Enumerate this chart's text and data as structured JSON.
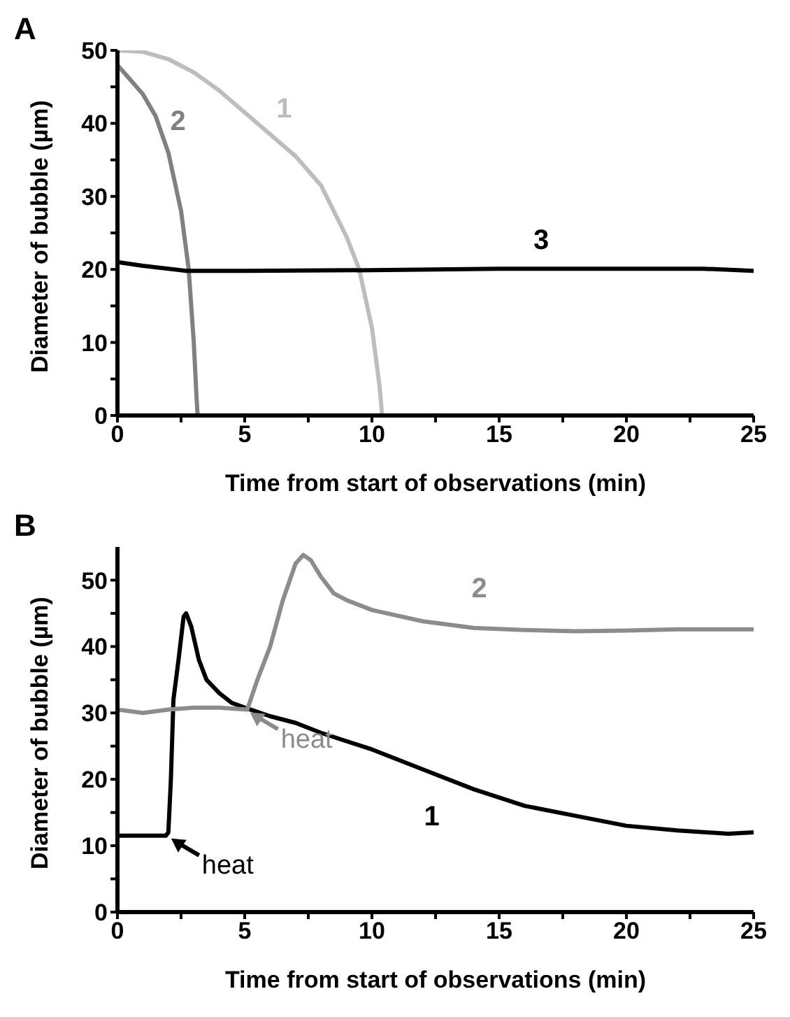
{
  "chart_data": [
    {
      "type": "line",
      "title": "A",
      "xlabel": "Time from start of observations (min)",
      "ylabel": "Diameter of bubble (µm)",
      "xlim": [
        0,
        25
      ],
      "ylim": [
        0,
        50
      ],
      "xticks": [
        0,
        {
          "value": 2.5,
          "label": null
        },
        5,
        {
          "value": 7.5,
          "label": null
        },
        10,
        {
          "value": 12.5,
          "label": null
        },
        15,
        {
          "value": 17.5,
          "label": null
        },
        20,
        {
          "value": 22.5,
          "label": null
        },
        25
      ],
      "yticks": [
        0,
        {
          "value": 5,
          "label": null
        },
        10,
        {
          "value": 15,
          "label": null
        },
        20,
        {
          "value": 25,
          "label": null
        },
        30,
        {
          "value": 35,
          "label": null
        },
        40,
        {
          "value": 45,
          "label": null
        },
        50
      ],
      "grid": false,
      "legend": false,
      "marker": "none",
      "line_style": "solid",
      "series": [
        {
          "name": "1",
          "color": "#bdbdbd",
          "x": [
            0,
            1,
            2,
            3,
            4,
            5,
            6,
            7,
            8,
            9,
            9.5,
            10,
            10.3,
            10.4
          ],
          "values": [
            50,
            49.8,
            48.8,
            47,
            44.5,
            41.5,
            38.5,
            35.5,
            31.5,
            24.5,
            20,
            12,
            4,
            0
          ]
        },
        {
          "name": "2",
          "color": "#808080",
          "x": [
            0,
            0.5,
            1,
            1.5,
            2,
            2.5,
            2.8,
            3,
            3.1,
            3.15
          ],
          "values": [
            48,
            46,
            44,
            41,
            36,
            28,
            20,
            10,
            3,
            0
          ]
        },
        {
          "name": "3",
          "color": "#000000",
          "x": [
            0,
            1,
            2.7,
            5,
            10,
            15,
            20,
            23,
            25
          ],
          "values": [
            21,
            20.5,
            19.8,
            19.8,
            19.9,
            20.1,
            20.1,
            20.1,
            19.8
          ]
        }
      ]
    },
    {
      "type": "line",
      "title": "B",
      "xlabel": "Time from start of observations (min)",
      "ylabel": "Diameter of bubble (µm)",
      "xlim": [
        0,
        25
      ],
      "ylim": [
        0,
        55
      ],
      "xticks": [
        0,
        {
          "value": 2.5,
          "label": null
        },
        5,
        {
          "value": 7.5,
          "label": null
        },
        10,
        {
          "value": 12.5,
          "label": null
        },
        15,
        {
          "value": 17.5,
          "label": null
        },
        20,
        {
          "value": 22.5,
          "label": null
        },
        25
      ],
      "yticks": [
        0,
        {
          "value": 5,
          "label": null
        },
        10,
        {
          "value": 15,
          "label": null
        },
        20,
        {
          "value": 25,
          "label": null
        },
        30,
        {
          "value": 35,
          "label": null
        },
        40,
        {
          "value": 45,
          "label": null
        },
        50
      ],
      "grid": false,
      "legend": false,
      "marker": "none",
      "line_style": "solid",
      "annotations": [
        {
          "text": "heat",
          "x": 2,
          "y": 11.5
        },
        {
          "text": "heat",
          "x": 5.1,
          "y": 30.5
        }
      ],
      "series": [
        {
          "name": "1",
          "color": "#000000",
          "x": [
            0,
            1.9,
            2,
            2.1,
            2.2,
            2.4,
            2.6,
            2.7,
            2.9,
            3.2,
            3.5,
            4,
            4.5,
            5,
            6,
            7,
            8,
            10,
            12,
            14,
            16,
            18,
            20,
            22,
            24,
            25
          ],
          "values": [
            11.5,
            11.5,
            12,
            20,
            32,
            38,
            44.5,
            45,
            43,
            38,
            35,
            33,
            31.5,
            30.8,
            29.5,
            28.5,
            27,
            24.5,
            21.5,
            18.5,
            16,
            14.5,
            13,
            12.3,
            11.8,
            12
          ]
        },
        {
          "name": "2",
          "color": "#8c8c8c",
          "x": [
            0,
            1,
            2,
            3,
            4,
            5.1,
            5.5,
            6,
            6.5,
            7,
            7.3,
            7.6,
            8,
            8.5,
            9,
            10,
            12,
            14,
            16,
            18,
            20,
            22,
            25
          ],
          "values": [
            30.5,
            30,
            30.5,
            30.8,
            30.8,
            30.5,
            35,
            40,
            47,
            52.5,
            53.8,
            53,
            50.5,
            48,
            47,
            45.5,
            43.8,
            42.8,
            42.5,
            42.3,
            42.4,
            42.6,
            42.6
          ]
        }
      ]
    }
  ]
}
